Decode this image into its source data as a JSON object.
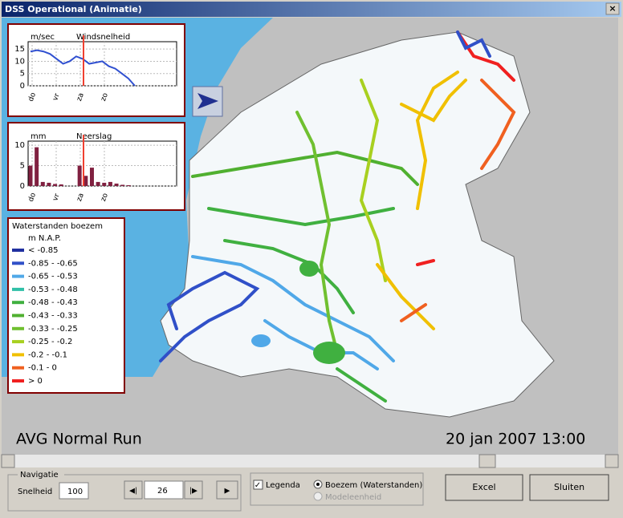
{
  "window": {
    "title": "DSS Operational (Animatie)"
  },
  "wind_chart": {
    "unit": "m/sec",
    "title": "Windsnelheid",
    "x_labels": [
      "do",
      "vr",
      "za",
      "zo"
    ],
    "ylim": [
      0,
      18
    ],
    "yticks": [
      0,
      5,
      10,
      15
    ],
    "color": "#3050d0",
    "values": [
      14,
      14.5,
      14,
      13,
      11,
      9,
      10,
      12,
      11,
      9,
      9.5,
      10,
      8,
      7,
      5,
      3,
      0
    ]
  },
  "rain_chart": {
    "unit": "mm",
    "title": "Neerslag",
    "x_labels": [
      "do",
      "vr",
      "za",
      "zo"
    ],
    "ylim": [
      0,
      11
    ],
    "yticks": [
      0,
      5,
      10
    ],
    "color": "#802040",
    "values": [
      5,
      9.5,
      1,
      0.8,
      0.5,
      0.4,
      0,
      0,
      5,
      2.5,
      4.5,
      1,
      0.8,
      1,
      0.6,
      0.3,
      0.2,
      0
    ]
  },
  "legend": {
    "title": "Waterstanden boezem",
    "unit": "m N.A.P.",
    "items": [
      {
        "label": "< -0.85",
        "color": "#2030a0"
      },
      {
        "label": "-0.85 - -0.65",
        "color": "#3050c8"
      },
      {
        "label": "-0.65 - -0.53",
        "color": "#50a8e8"
      },
      {
        "label": "-0.53 - -0.48",
        "color": "#30c0a8"
      },
      {
        "label": "-0.48 - -0.43",
        "color": "#40b040"
      },
      {
        "label": "-0.43 - -0.33",
        "color": "#50b030"
      },
      {
        "label": "-0.33 - -0.25",
        "color": "#70c030"
      },
      {
        "label": "-0.25 - -0.2",
        "color": "#a8d020"
      },
      {
        "label": "-0.2 - -0.1",
        "color": "#f0c000"
      },
      {
        "label": "-0.1 - 0",
        "color": "#f06020"
      },
      {
        "label": "> 0",
        "color": "#f02020"
      }
    ]
  },
  "map": {
    "run_label": "AVG Normal Run",
    "timestamp": "20 jan 2007 13:00"
  },
  "controls": {
    "navigation_title": "Navigatie",
    "speed_label": "Snelheid",
    "speed_value": "100",
    "frame_value": "26",
    "legend_checkbox": "Legenda",
    "option_1": "Boezem (Waterstanden)",
    "option_2": "Modeleenheid",
    "excel_button": "Excel",
    "close_button": "Sluiten"
  }
}
